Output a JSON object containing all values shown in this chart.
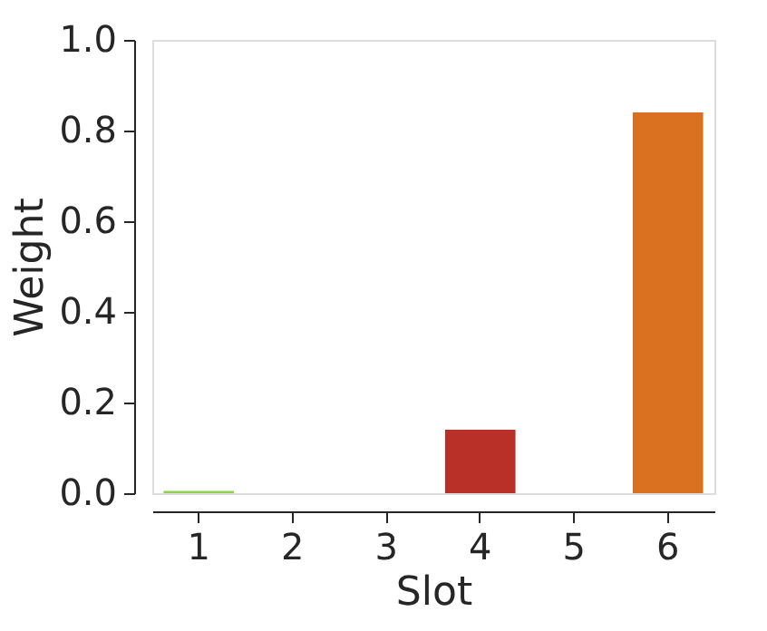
{
  "chart_data": {
    "type": "bar",
    "xlabel": "Slot",
    "ylabel": "Weight",
    "categories": [
      "1",
      "2",
      "3",
      "4",
      "5",
      "6"
    ],
    "values": [
      0.005,
      0,
      0,
      0.14,
      0,
      0.84
    ],
    "colors": [
      "#8fd14f",
      "#4c72b0",
      "#55a868",
      "#b83027",
      "#8172b2",
      "#d97120"
    ],
    "ylim": [
      0,
      1.0
    ],
    "yticks": [
      {
        "value": 0,
        "label": "0.0"
      },
      0.2,
      0.4,
      0.6,
      0.8,
      {
        "value": 1.0,
        "label": "1.0"
      }
    ],
    "grid": false,
    "legend": false
  }
}
